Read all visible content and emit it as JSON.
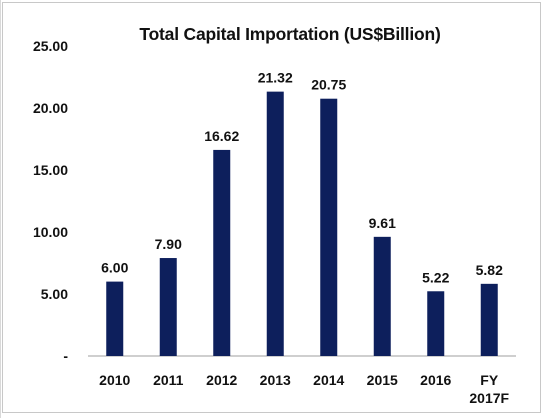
{
  "chart_data": {
    "type": "bar",
    "title": "Total Capital Importation (US$Billion)",
    "categories": [
      "2010",
      "2011",
      "2012",
      "2013",
      "2014",
      "2015",
      "2016",
      "FY 2017F"
    ],
    "category_lines": [
      [
        "2010"
      ],
      [
        "2011"
      ],
      [
        "2012"
      ],
      [
        "2013"
      ],
      [
        "2014"
      ],
      [
        "2015"
      ],
      [
        "2016"
      ],
      [
        "FY",
        "2017F"
      ]
    ],
    "values": [
      6.0,
      7.9,
      16.62,
      21.32,
      20.75,
      9.61,
      5.22,
      5.82
    ],
    "data_labels": [
      "6.00",
      "7.90",
      "16.62",
      "21.32",
      "20.75",
      "9.61",
      "5.22",
      "5.82"
    ],
    "yticks": [
      {
        "value": 0,
        "label": "-"
      },
      {
        "value": 5,
        "label": "5.00"
      },
      {
        "value": 10,
        "label": "10.00"
      },
      {
        "value": 15,
        "label": "15.00"
      },
      {
        "value": 20,
        "label": "20.00"
      },
      {
        "value": 25,
        "label": "25.00"
      }
    ],
    "ylim": [
      0,
      25
    ],
    "xlabel": "",
    "ylabel": "",
    "grid": false,
    "legend": "none",
    "bar_color": "#0d1f5c"
  }
}
